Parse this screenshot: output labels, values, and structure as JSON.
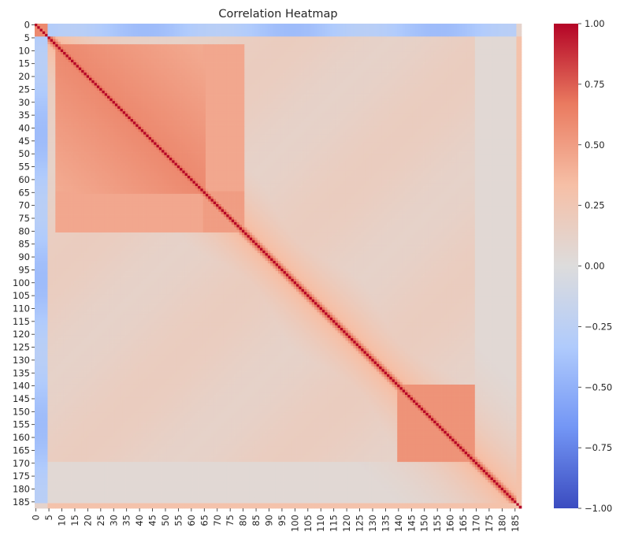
{
  "chart_data": {
    "type": "heatmap",
    "title": "Correlation Heatmap",
    "n": 188,
    "x_ticks": [
      "0",
      "5",
      "10",
      "15",
      "20",
      "25",
      "30",
      "35",
      "40",
      "45",
      "50",
      "55",
      "60",
      "65",
      "70",
      "75",
      "80",
      "85",
      "90",
      "95",
      "100",
      "105",
      "110",
      "115",
      "120",
      "125",
      "130",
      "135",
      "140",
      "145",
      "150",
      "155",
      "160",
      "165",
      "170",
      "175",
      "180",
      "185"
    ],
    "y_ticks": [
      "0",
      "5",
      "10",
      "15",
      "20",
      "25",
      "30",
      "35",
      "40",
      "45",
      "50",
      "55",
      "60",
      "65",
      "70",
      "75",
      "80",
      "85",
      "90",
      "95",
      "100",
      "105",
      "110",
      "115",
      "120",
      "125",
      "130",
      "135",
      "140",
      "145",
      "150",
      "155",
      "160",
      "165",
      "170",
      "175",
      "180",
      "185"
    ],
    "tick_step": 5,
    "colorbar": {
      "min": -1.0,
      "max": 1.0,
      "ticks": [
        "1.00",
        "0.75",
        "0.50",
        "0.25",
        "0.00",
        "−0.25",
        "−0.50",
        "−0.75",
        "−1.00"
      ],
      "colormap": "coolwarm",
      "colors": [
        "#3b4cc0",
        "#7396f5",
        "#b0cbfc",
        "#dddcdc",
        "#f6bfa6",
        "#ea7b60",
        "#b40426"
      ]
    },
    "approximate_structure": {
      "diagonal": 1.0,
      "block_0_4_vs_rest": -0.35,
      "block_8_65": 0.6,
      "block_65_80_vs_8_65": 0.45,
      "band_near_diagonal": 0.4,
      "band_140_170": 0.55,
      "block_170_185": 0.05,
      "last_index_vs_rest": 0.3,
      "background": 0.15
    }
  }
}
